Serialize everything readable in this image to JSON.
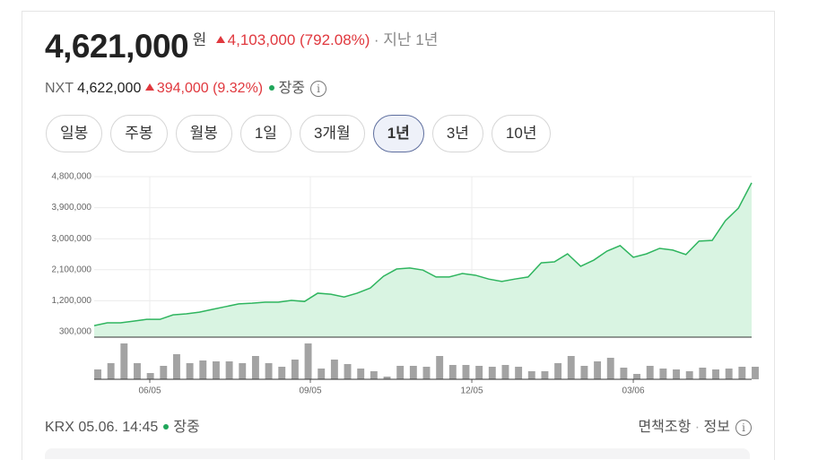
{
  "header": {
    "price": "4,621,000",
    "unit": "원",
    "change": "4,103,000 (792.08%)",
    "period": "지난 1년"
  },
  "nxt": {
    "label": "NXT",
    "price": "4,622,000",
    "change": "394,000 (9.32%)",
    "status": "장중"
  },
  "tabs": [
    "일봉",
    "주봉",
    "월봉",
    "1일",
    "3개월",
    "1년",
    "3년",
    "10년"
  ],
  "selected_tab": "1년",
  "chart_data": {
    "type": "area",
    "color": "#2fb55f",
    "fill": "#d9f4e2",
    "volume_color": "#a3a3a3",
    "grid": true,
    "x": [
      0,
      1,
      2,
      3,
      4,
      5,
      6,
      7,
      8,
      9,
      10,
      11,
      12,
      13,
      14,
      15,
      16,
      17,
      18,
      19,
      20,
      21,
      22,
      23,
      24,
      25,
      26,
      27,
      28,
      29,
      30,
      31,
      32,
      33,
      34,
      35,
      36,
      37,
      38,
      39,
      40,
      41,
      42,
      43,
      44,
      45,
      46,
      47,
      48,
      49,
      50
    ],
    "xlim": [
      0,
      50
    ],
    "xticks": [
      {
        "value": 4.23,
        "label": "06/05"
      },
      {
        "value": 16.44,
        "label": "09/05"
      },
      {
        "value": 28.72,
        "label": "12/05"
      },
      {
        "value": 41,
        "label": "03/06"
      }
    ],
    "ylim": [
      144000,
      4800000
    ],
    "yticks": [
      {
        "value": 300000,
        "label": "300,000"
      },
      {
        "value": 1200000,
        "label": "1,200,000"
      },
      {
        "value": 2100000,
        "label": "2,100,000"
      },
      {
        "value": 3000000,
        "label": "3,000,000"
      },
      {
        "value": 3900000,
        "label": "3,900,000"
      },
      {
        "value": 4800000,
        "label": "4,800,000"
      }
    ],
    "series": [
      {
        "values": [
          480000,
          560000,
          560000,
          610000,
          660000,
          660000,
          790000,
          820000,
          870000,
          950000,
          1030000,
          1110000,
          1130000,
          1160000,
          1160000,
          1210000,
          1180000,
          1420000,
          1390000,
          1310000,
          1420000,
          1570000,
          1910000,
          2120000,
          2150000,
          2090000,
          1890000,
          1890000,
          1990000,
          1940000,
          1830000,
          1760000,
          1830000,
          1890000,
          2300000,
          2330000,
          2560000,
          2200000,
          2380000,
          2640000,
          2800000,
          2460000,
          2560000,
          2720000,
          2670000,
          2540000,
          2930000,
          2950000,
          3520000,
          3890000,
          4621000
        ]
      }
    ],
    "volume": [
      11,
      18,
      40,
      18,
      7,
      15,
      28,
      18,
      21,
      20,
      20,
      18,
      26,
      18,
      14,
      22,
      40,
      12,
      22,
      17,
      12,
      9,
      3,
      15,
      15,
      14,
      26,
      16,
      16,
      15,
      14,
      16,
      14,
      9,
      9,
      18,
      26,
      15,
      20,
      24,
      13,
      6,
      15,
      12,
      11,
      9,
      13,
      11,
      12,
      14,
      14
    ]
  },
  "footer": {
    "exchange": "KRX 05.06. 14:45",
    "status": "장중",
    "disclaimer": "면책조항",
    "info": "정보"
  }
}
